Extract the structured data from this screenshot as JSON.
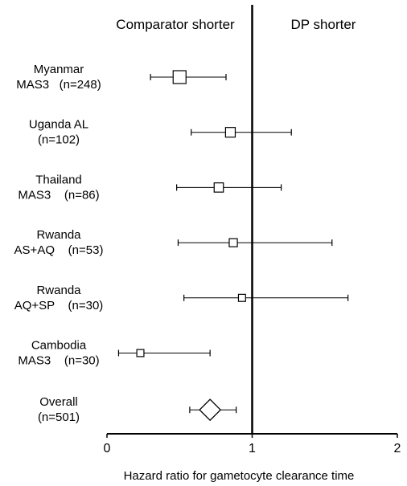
{
  "chart_data": {
    "type": "forest",
    "title": "",
    "xlabel": "Hazard ratio for gametocyte clearance time",
    "ylabel": "",
    "xlim": [
      0,
      2
    ],
    "xticks": [
      0,
      1,
      2
    ],
    "reference_line": 1,
    "side_labels": {
      "left": "Comparator shorter",
      "right": "DP shorter"
    },
    "studies": [
      {
        "line1": "Myanmar",
        "line2": "MAS3   (n=248)",
        "hr": 0.5,
        "ci": [
          0.3,
          0.82
        ],
        "weight": 248
      },
      {
        "line1": "Uganda   AL",
        "line2": "(n=102)",
        "hr": 0.85,
        "ci": [
          0.58,
          1.27
        ],
        "weight": 102
      },
      {
        "line1": "Thailand",
        "line2": "MAS3    (n=86)",
        "hr": 0.77,
        "ci": [
          0.48,
          1.2
        ],
        "weight": 86
      },
      {
        "line1": "Rwanda",
        "line2": "AS+AQ    (n=53)",
        "hr": 0.87,
        "ci": [
          0.49,
          1.55
        ],
        "weight": 53
      },
      {
        "line1": "Rwanda",
        "line2": "AQ+SP    (n=30)",
        "hr": 0.93,
        "ci": [
          0.53,
          1.66
        ],
        "weight": 30
      },
      {
        "line1": "Cambodia",
        "line2": "MAS3    (n=30)",
        "hr": 0.23,
        "ci": [
          0.08,
          0.71
        ],
        "weight": 30
      }
    ],
    "overall": {
      "line1": "Overall",
      "line2": "(n=501)",
      "hr": 0.71,
      "ci": [
        0.57,
        0.89
      ]
    }
  }
}
